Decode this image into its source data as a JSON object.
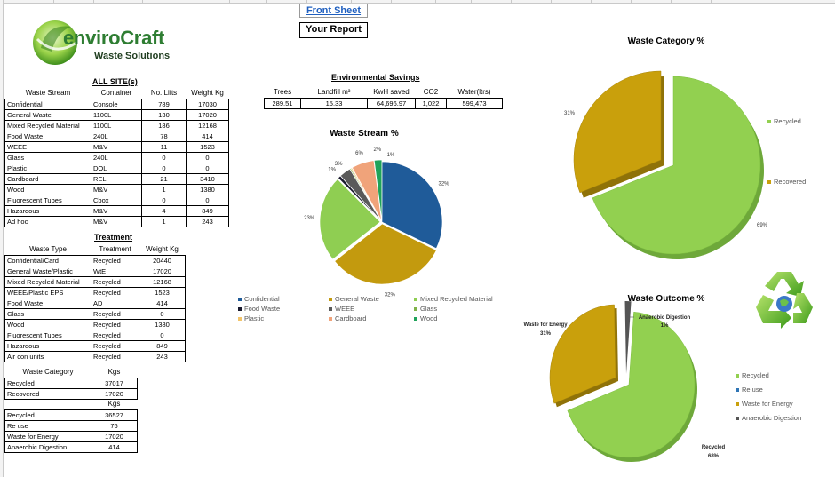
{
  "logo": {
    "brand": "enviroCraft",
    "tagline": "Waste Solutions"
  },
  "nav": {
    "front_sheet": "Front Sheet",
    "your_report": "Your Report"
  },
  "all_sites": {
    "heading": "ALL SITE(s)",
    "columns": [
      "Waste Stream",
      "Container",
      "No. Lifts",
      "Weight Kg"
    ],
    "rows": [
      [
        "Confidential",
        "Console",
        "789",
        "17030"
      ],
      [
        "General Waste",
        "1100L",
        "130",
        "17020"
      ],
      [
        "Mixed Recycled Material",
        "1100L",
        "186",
        "12168"
      ],
      [
        "Food Waste",
        "240L",
        "78",
        "414"
      ],
      [
        "WEEE",
        "M&V",
        "11",
        "1523"
      ],
      [
        "Glass",
        "240L",
        "0",
        "0"
      ],
      [
        "Plastic",
        "DOL",
        "0",
        "0"
      ],
      [
        "Cardboard",
        "REL",
        "21",
        "3410"
      ],
      [
        "Wood",
        "M&V",
        "1",
        "1380"
      ],
      [
        "Fluorescent Tubes",
        "Cbox",
        "0",
        "0"
      ],
      [
        "Hazardous",
        "M&V",
        "4",
        "849"
      ],
      [
        "Ad hoc",
        "M&V",
        "1",
        "243"
      ]
    ]
  },
  "treatment": {
    "heading": "Treatment",
    "columns": [
      "Waste Type",
      "Treatment",
      "Weight Kg"
    ],
    "rows": [
      [
        "Confidential/Card",
        "Recycled",
        "20440"
      ],
      [
        "General Waste/Plastic",
        "WtE",
        "17020"
      ],
      [
        "Mixed Recycled Material",
        "Recycled",
        "12168"
      ],
      [
        "WEEE/Plastic EPS",
        "Recycled",
        "1523"
      ],
      [
        "Food Waste",
        "AD",
        "414"
      ],
      [
        "Glass",
        "Recycled",
        "0"
      ],
      [
        "Wood",
        "Recycled",
        "1380"
      ],
      [
        "Fluorescent Tubes",
        "Recycled",
        "0"
      ],
      [
        "Hazardous",
        "Recycled",
        "849"
      ],
      [
        "Air con units",
        "Recycled",
        "243"
      ]
    ]
  },
  "category_table": {
    "columns": [
      "Waste Category",
      "Kgs"
    ],
    "rows": [
      [
        "Recycled",
        "37017"
      ],
      [
        "Recovered",
        "17020"
      ]
    ]
  },
  "outcome_table": {
    "columns": [
      "",
      "Kgs"
    ],
    "rows": [
      [
        "Recycled",
        "36527"
      ],
      [
        "Re use",
        "76"
      ],
      [
        "Waste for Energy",
        "17020"
      ],
      [
        "Anaerobic Digestion",
        "414"
      ]
    ]
  },
  "env_savings": {
    "heading": "Environmental Savings",
    "columns": [
      "Trees",
      "Landfill m³",
      "KwH saved",
      "CO2",
      "Water(ltrs)"
    ],
    "values": [
      "289.51",
      "15.33",
      "64,696.97",
      "1,022",
      "599,473"
    ]
  },
  "colors": {
    "confidential": "#1f5b99",
    "general": "#c39a0e",
    "mixed": "#8fce52",
    "food": "#1a1a2e",
    "weee": "#5a5a5a",
    "glass": "#7fb24a",
    "plastic": "#f2c46b",
    "cardboard": "#f0a37a",
    "wood": "#1fa35a",
    "recycled": "#92d050",
    "recovered": "#c9a00c",
    "reuse": "#2f75b5",
    "wte": "#c9a00c",
    "ad": "#555555"
  },
  "chart_data": [
    {
      "type": "pie",
      "title": "Waste Stream %",
      "categories": [
        "Confidential",
        "General Waste",
        "Mixed Recycled Material",
        "Food Waste",
        "WEEE",
        "Glass",
        "Plastic",
        "Cardboard",
        "Wood"
      ],
      "values": [
        32,
        32,
        23,
        1,
        3,
        0,
        0,
        6,
        2
      ],
      "labels": [
        "32%",
        "32%",
        "23%",
        "1%",
        "3%",
        "",
        "",
        "6%",
        "2%"
      ],
      "extra_label": "1%",
      "legend": [
        "Confidential",
        "General Waste",
        "Mixed Recycled Material",
        "Food Waste",
        "WEEE",
        "Glass",
        "Plastic",
        "Cardboard",
        "Wood"
      ]
    },
    {
      "type": "pie",
      "title": "Waste Category %",
      "categories": [
        "Recycled",
        "Recovered"
      ],
      "values": [
        69,
        31
      ],
      "labels": [
        "69%",
        "31%"
      ],
      "legend": [
        "Recycled",
        "Recovered"
      ]
    },
    {
      "type": "pie",
      "title": "Waste Outcome %",
      "categories": [
        "Recycled",
        "Re use",
        "Waste for Energy",
        "Anaerobic Digestion"
      ],
      "values": [
        68,
        0,
        31,
        1
      ],
      "labels": [
        "Recycled",
        "Waste for Energy",
        "Anaerobic Digestion"
      ],
      "pct_labels": [
        "68%",
        "31%",
        "1%"
      ],
      "legend": [
        "Recycled",
        "Re use",
        "Waste for Energy",
        "Anaerobic Digestion"
      ]
    }
  ]
}
